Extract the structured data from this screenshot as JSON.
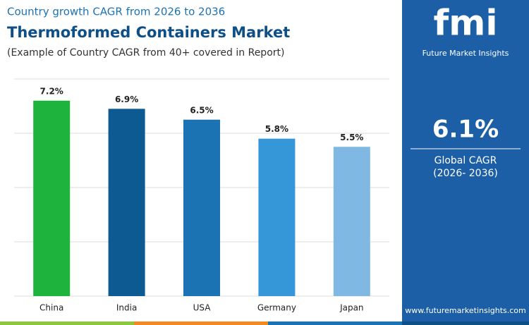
{
  "chart_data": {
    "type": "bar",
    "subtitle": "Country growth CAGR from 2026 to 2036",
    "title": "Thermoformed Containers Market",
    "note": "(Example of Country CAGR from 40+ covered in Report)",
    "categories": [
      "China",
      "India",
      "USA",
      "Germany",
      "Japan"
    ],
    "values": [
      7.2,
      6.9,
      6.5,
      5.8,
      5.5
    ],
    "value_labels": [
      "7.2%",
      "6.9%",
      "6.5%",
      "5.8%",
      "5.5%"
    ],
    "colors": [
      "#1db33c",
      "#0d5a92",
      "#1c73b4",
      "#3596d8",
      "#7fb9e3"
    ],
    "ylim": [
      0,
      8
    ],
    "yticks": [
      0,
      2,
      4,
      6,
      8
    ],
    "grid": true
  },
  "panel": {
    "logo": "fmi",
    "brand": "Future Market Insights",
    "value": "6.1%",
    "label": "Global CAGR",
    "period": "(2026- 2036)",
    "url": "www.futuremarketinsights.com"
  }
}
